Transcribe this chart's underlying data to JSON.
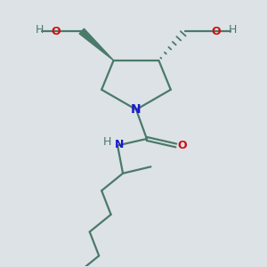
{
  "bg_color": "#dde2e6",
  "bond_color": "#4a7a6a",
  "N_color": "#1a1acc",
  "O_color": "#cc1111",
  "H_color": "#4a7a6a",
  "figsize": [
    3.0,
    3.0
  ],
  "dpi": 100,
  "xlim": [
    0,
    10
  ],
  "ylim": [
    0,
    10
  ]
}
